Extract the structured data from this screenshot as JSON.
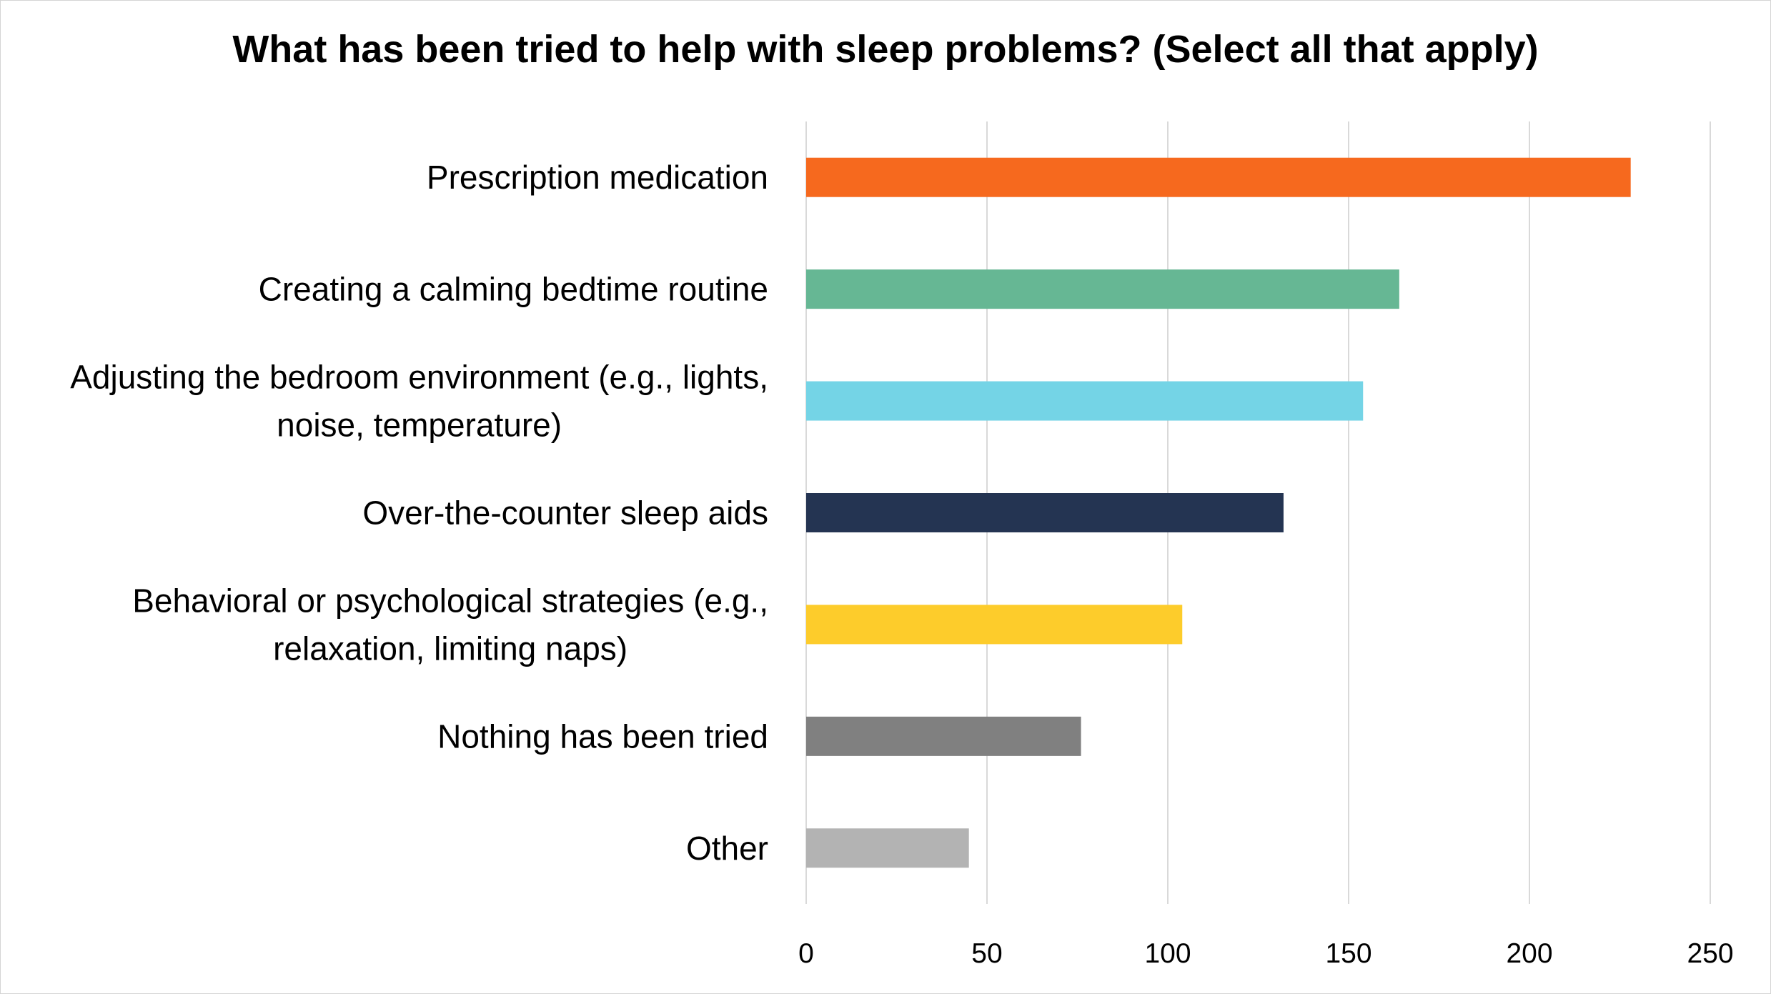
{
  "chart_data": {
    "type": "bar",
    "orientation": "horizontal",
    "title": "What has been tried to help with sleep problems? (Select all that apply)",
    "xlabel": "",
    "ylabel": "",
    "xlim": [
      0,
      250
    ],
    "ticks": [
      "0",
      "50",
      "100",
      "150",
      "200",
      "250"
    ],
    "tick_values": [
      0,
      50,
      100,
      150,
      200,
      250
    ],
    "grid": true,
    "legend": "none",
    "categories": [
      [
        "Prescription medication"
      ],
      [
        "Creating a calming bedtime routine"
      ],
      [
        "Adjusting the bedroom environment (e.g., lights,",
        "noise, temperature)"
      ],
      [
        "Over-the-counter sleep aids"
      ],
      [
        "Behavioral or psychological strategies (e.g.,",
        "relaxation, limiting naps)"
      ],
      [
        "Nothing has been tried"
      ],
      [
        "Other"
      ]
    ],
    "values": [
      228,
      164,
      154,
      132,
      104,
      76,
      45
    ],
    "colors": [
      "#F6691E",
      "#66B794",
      "#74D4E6",
      "#243452",
      "#FDCC2B",
      "#808080",
      "#B3B3B3"
    ]
  }
}
